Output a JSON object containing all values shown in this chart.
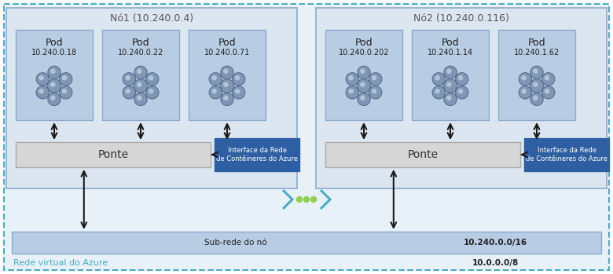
{
  "node1_label": "Nó1 (10.240.0.4)",
  "node2_label": "Nó2 (10.240.0.116)",
  "node1_pods": [
    {
      "label": "Pod",
      "ip": "10.240.0.18"
    },
    {
      "label": "Pod",
      "ip": "10.240.0.22"
    },
    {
      "label": "Pod",
      "ip": "10.240.0.71"
    }
  ],
  "node2_pods": [
    {
      "label": "Pod",
      "ip": "10.240.0.202"
    },
    {
      "label": "Pod",
      "ip": "10.240.1.14"
    },
    {
      "label": "Pod",
      "ip": "10.240.1.62"
    }
  ],
  "bridge_label": "Ponte",
  "interface_label": "Interface da Rede\nde Contêineres do Azure",
  "subnet_label": "Sub-rede do nó",
  "subnet_ip": "10.240.0.0/16",
  "vnet_label": "Rede virtual do Azure",
  "vnet_ip": "10.0.0.0/8",
  "node_box_color": "#dce6f1",
  "node_box_border": "#8eaacc",
  "pod_box_color": "#b8cce4",
  "pod_box_border": "#8eaacc",
  "bridge_box_color": "#d6d6d6",
  "bridge_box_border": "#aaaaaa",
  "interface_box_color": "#2e5fa3",
  "interface_text_color": "#ffffff",
  "subnet_box_color": "#b8cce4",
  "subnet_box_border": "#8eaacc",
  "vnet_box_fill": "#e8f1f8",
  "vnet_border_color": "#4bacc6",
  "vnet_text_color": "#4bacc6",
  "background_color": "#ffffff",
  "arrow_color": "#1a1a1a",
  "dots_color": "#92d050",
  "chevron_color": "#4bacc6",
  "icon_fill": "#8096b4",
  "icon_dark": "#4a6080",
  "icon_light": "#c8d8e8"
}
